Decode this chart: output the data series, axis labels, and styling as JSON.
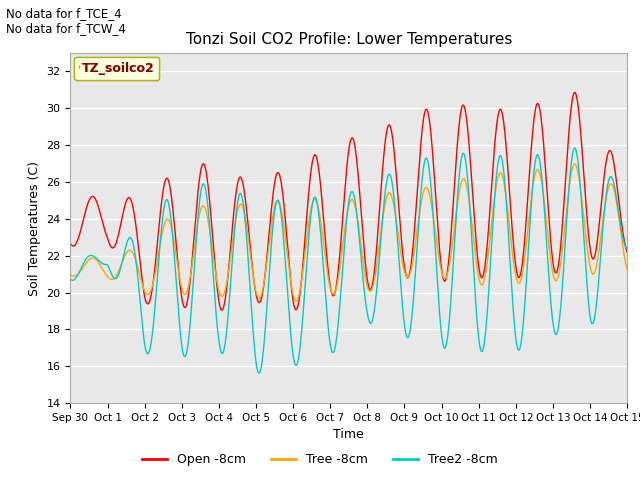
{
  "title": "Tonzi Soil CO2 Profile: Lower Temperatures",
  "xlabel": "Time",
  "ylabel": "Soil Temperatures (C)",
  "ylim": [
    14,
    33
  ],
  "yticks": [
    14,
    16,
    18,
    20,
    22,
    24,
    26,
    28,
    30,
    32
  ],
  "annotations": [
    "No data for f_TCE_4",
    "No data for f_TCW_4"
  ],
  "legend_label": "TZ_soilco2",
  "series_labels": [
    "Open -8cm",
    "Tree -8cm",
    "Tree2 -8cm"
  ],
  "series_colors": [
    "#ff0000",
    "#ffa500",
    "#00cccc"
  ],
  "x_tick_labels": [
    "Sep 30",
    "Oct 1",
    "Oct 2",
    "Oct 3",
    "Oct 4",
    "Oct 5",
    "Oct 6",
    "Oct 7",
    "Oct 8",
    "Oct 9",
    "Oct 10",
    "Oct 11",
    "Oct 12",
    "Oct 13",
    "Oct 14",
    "Oct 15"
  ],
  "n_days": 16,
  "open_peaks": [
    24.8,
    25.5,
    24.9,
    27.1,
    26.9,
    25.8,
    27.0,
    27.8,
    28.8,
    29.3,
    30.4,
    30.0,
    29.9,
    30.5,
    31.1,
    25.0
  ],
  "open_troughs": [
    22.5,
    22.8,
    19.4,
    19.2,
    19.0,
    19.5,
    19.0,
    19.8,
    20.1,
    20.8,
    20.6,
    20.8,
    20.8,
    21.0,
    21.8,
    22.0
  ],
  "tree_peaks": [
    21.7,
    22.0,
    22.5,
    25.0,
    24.5,
    25.0,
    25.0,
    25.1,
    25.0,
    25.7,
    25.7,
    26.5,
    26.5,
    26.8,
    27.1,
    25.0
  ],
  "tree_troughs": [
    20.9,
    20.8,
    19.9,
    19.9,
    19.8,
    19.7,
    19.5,
    19.9,
    20.0,
    20.8,
    20.8,
    20.4,
    20.5,
    20.6,
    21.0,
    21.0
  ],
  "tree2_peaks": [
    22.3,
    21.8,
    23.8,
    25.9,
    25.9,
    25.0,
    25.0,
    25.3,
    25.6,
    27.0,
    27.5,
    27.6,
    27.3,
    27.6,
    28.0,
    25.0
  ],
  "tree2_troughs": [
    20.6,
    21.5,
    16.7,
    16.5,
    16.8,
    15.6,
    16.0,
    16.6,
    18.4,
    17.6,
    17.0,
    16.8,
    16.8,
    17.7,
    18.0,
    22.2
  ],
  "pts_per_day": 96,
  "peak_hour": 14,
  "trough_hour": 5
}
